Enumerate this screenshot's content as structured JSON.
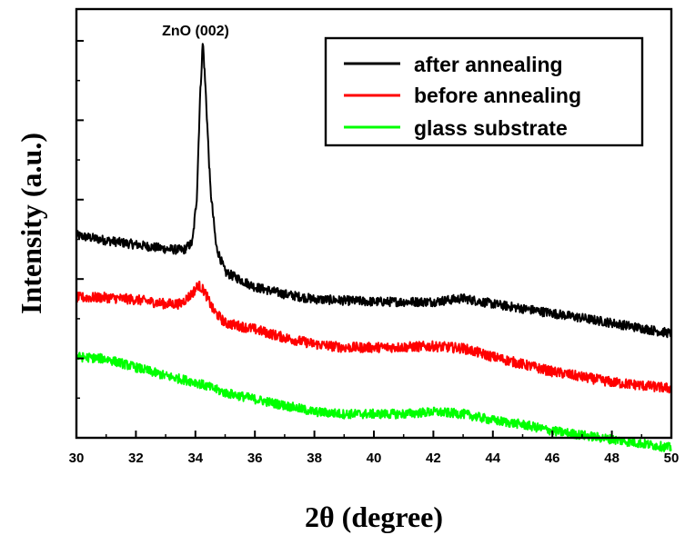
{
  "chart_data": {
    "type": "line",
    "title": "",
    "xlabel": "2θ (degree)",
    "ylabel": "Intensity (a.u.)",
    "xlim": [
      30,
      50
    ],
    "ylim": [
      0,
      100
    ],
    "x_ticks": [
      "30",
      "32",
      "34",
      "36",
      "38",
      "40",
      "42",
      "44",
      "46",
      "48",
      "50"
    ],
    "y_tick_labels_shown": false,
    "grid": false,
    "legend_position": "top-right",
    "annotation": {
      "text": "ZnO (002)",
      "x": 34.25
    },
    "series": [
      {
        "name": "after annealing",
        "color": "#000000",
        "points": [
          [
            30,
            48.7
          ],
          [
            31,
            47.5
          ],
          [
            32,
            46.5
          ],
          [
            33,
            45.5
          ],
          [
            33.6,
            45.2
          ],
          [
            33.9,
            47
          ],
          [
            34.05,
            58
          ],
          [
            34.15,
            80
          ],
          [
            34.25,
            94.5
          ],
          [
            34.35,
            82
          ],
          [
            34.5,
            60
          ],
          [
            34.7,
            46
          ],
          [
            35,
            40
          ],
          [
            36,
            36.5
          ],
          [
            37,
            34.8
          ],
          [
            38,
            33.6
          ],
          [
            40,
            33
          ],
          [
            42,
            33
          ],
          [
            43,
            33.8
          ],
          [
            44,
            32.5
          ],
          [
            46,
            30.3
          ],
          [
            48,
            28
          ],
          [
            50,
            25.5
          ]
        ],
        "noise": 1.1
      },
      {
        "name": "before annealing",
        "color": "#ff0000",
        "points": [
          [
            30,
            34
          ],
          [
            31,
            34
          ],
          [
            32,
            33.5
          ],
          [
            33,
            32.5
          ],
          [
            33.5,
            32.5
          ],
          [
            33.9,
            35
          ],
          [
            34.1,
            37
          ],
          [
            34.3,
            35.5
          ],
          [
            34.6,
            31
          ],
          [
            35,
            28
          ],
          [
            36,
            26.5
          ],
          [
            37,
            24.5
          ],
          [
            38,
            23
          ],
          [
            39,
            22.2
          ],
          [
            40,
            22.2
          ],
          [
            41,
            22.3
          ],
          [
            42,
            22.5
          ],
          [
            43,
            22
          ],
          [
            44,
            20
          ],
          [
            46,
            16.5
          ],
          [
            48,
            14
          ],
          [
            50,
            12.5
          ]
        ],
        "noise": 1.2
      },
      {
        "name": "glass substrate",
        "color": "#00ff00",
        "points": [
          [
            30,
            20
          ],
          [
            31,
            19.5
          ],
          [
            32,
            17.5
          ],
          [
            33,
            15.5
          ],
          [
            34,
            14
          ],
          [
            35,
            11.5
          ],
          [
            36,
            10
          ],
          [
            37,
            8.5
          ],
          [
            38,
            7
          ],
          [
            39,
            6.5
          ],
          [
            40,
            6.5
          ],
          [
            41,
            6.5
          ],
          [
            42,
            7
          ],
          [
            43,
            6.5
          ],
          [
            44,
            5
          ],
          [
            45,
            4
          ],
          [
            46,
            2.5
          ],
          [
            48,
            0.5
          ],
          [
            50,
            -1.5
          ]
        ],
        "noise": 1.1
      }
    ]
  }
}
